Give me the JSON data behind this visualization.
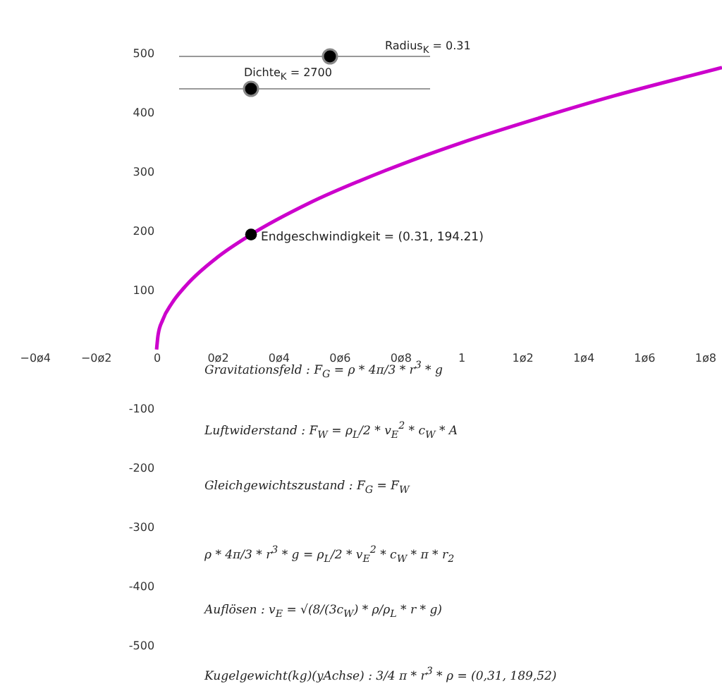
{
  "chart_data": {
    "type": "line",
    "xlim": [
      -0.514,
      1.856
    ],
    "ylim": [
      -588,
      590
    ],
    "xticks": [
      {
        "value": -0.4,
        "label": "−0ø4"
      },
      {
        "value": -0.2,
        "label": "−0ø2"
      },
      0,
      {
        "value": 0.2,
        "label": "0ø2"
      },
      {
        "value": 0.4,
        "label": "0ø4"
      },
      {
        "value": 0.6,
        "label": "0ø6"
      },
      {
        "value": 0.8,
        "label": "0ø8"
      },
      1,
      {
        "value": 1.2,
        "label": "1ø2"
      },
      {
        "value": 1.4,
        "label": "1ø4"
      },
      {
        "value": 1.6,
        "label": "1ø6"
      },
      {
        "value": 1.8,
        "label": "1ø8"
      }
    ],
    "yticks": [
      -500,
      -400,
      -300,
      -200,
      -100,
      100,
      200,
      300,
      400,
      500
    ],
    "grid": false,
    "series": [
      {
        "color": "#cc00cc",
        "marker": "none",
        "x": [
          0,
          0.005,
          0.02,
          0.05,
          0.1,
          0.2,
          0.31,
          0.5,
          0.75,
          1.0,
          1.25,
          1.5,
          1.75,
          1.856
        ],
        "values": [
          0,
          25,
          50,
          78,
          110,
          156,
          194.21,
          247,
          302,
          349,
          390,
          428,
          462,
          476
        ]
      },
      {
        "type": "scatter",
        "color": "#000000",
        "marker": "circle",
        "x": [
          0.31
        ],
        "values": [
          194.21
        ]
      }
    ],
    "annotations": [
      "Radius$_{K}$ = 0.31",
      "Dichte$_{K}$ = 2700",
      {
        "text": "Endgeschwindigkeit = (0.31, 194.21)",
        "x": 0.31,
        "y": 194.21
      },
      "Gravitationsfeld : F$_{G}$ = ρ * 4π/3 * r$^{3}$ * g",
      "Luftwiderstand : F$_{W}$ = ρ$_{L}$/2 * v$_{E}$$^{2}$ * c$_{W}$ * A",
      "Gleichgewichtszustand : F$_{G}$ = F$_{W}$",
      "ρ * 4π/3 * r$^{3}$ * g = ρ$_{L}$/2 * v$_{E}$$^{2}$ * c$_{W}$ * π * r$_{2}$",
      "Auflösen : v$_{E}$ = √(8/(3c$_{W}$) * ρ/ρ$_{L}$ * r * g)",
      "Kugelgewicht(kg)(yAchse) : 3/4 π * r$^{3}$ * ρ = (0,31, 189,52)"
    ]
  }
}
